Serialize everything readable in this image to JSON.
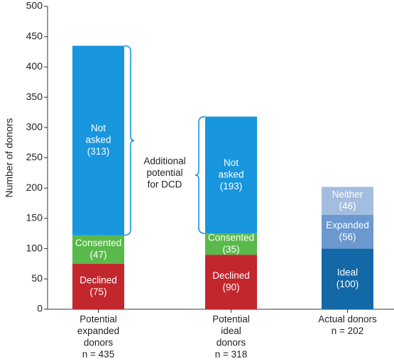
{
  "chart_data": {
    "type": "bar",
    "stacked": true,
    "ylabel": "Number of donors",
    "ylim": [
      0,
      500
    ],
    "yticks": [
      0,
      50,
      100,
      150,
      200,
      250,
      300,
      350,
      400,
      450,
      500
    ],
    "bars": [
      {
        "category": [
          "Potential",
          "expanded",
          "donors"
        ],
        "n_label": "n = 435",
        "segments": [
          {
            "name": "Declined",
            "label": [
              "Declined",
              "(75)"
            ],
            "value": 75,
            "color": "#c1272d"
          },
          {
            "name": "Consented",
            "label": [
              "Consented",
              "(47)"
            ],
            "value": 47,
            "color": "#59b94a"
          },
          {
            "name": "Not asked",
            "label": [
              "Not",
              "asked",
              "(313)"
            ],
            "value": 313,
            "color": "#1796de"
          }
        ]
      },
      {
        "category": [
          "Potential",
          "ideal",
          "donors"
        ],
        "n_label": "n = 318",
        "segments": [
          {
            "name": "Declined",
            "label": [
              "Declined",
              "(90)"
            ],
            "value": 90,
            "color": "#c1272d"
          },
          {
            "name": "Consented",
            "label": [
              "Consented",
              "(35)"
            ],
            "value": 35,
            "color": "#59b94a"
          },
          {
            "name": "Not asked",
            "label": [
              "Not",
              "asked",
              "(193)"
            ],
            "value": 193,
            "color": "#1796de"
          }
        ]
      },
      {
        "category": [
          "Actual donors"
        ],
        "n_label": "n = 202",
        "segments": [
          {
            "name": "Ideal",
            "label": [
              "Ideal",
              "(100)"
            ],
            "value": 100,
            "color": "#1368a8"
          },
          {
            "name": "Expanded",
            "label": [
              "Expanded",
              "(56)"
            ],
            "value": 56,
            "color": "#6a98cf"
          },
          {
            "name": "Neither",
            "label": [
              "Neither",
              "(46)"
            ],
            "value": 46,
            "color": "#a3bde0"
          }
        ]
      }
    ],
    "annotation": {
      "lines": [
        "Additional",
        "potential",
        "for DCD"
      ],
      "brackets": [
        {
          "bar": 0,
          "from": 122,
          "to": 435
        },
        {
          "bar": 1,
          "from": 125,
          "to": 318
        }
      ]
    }
  }
}
